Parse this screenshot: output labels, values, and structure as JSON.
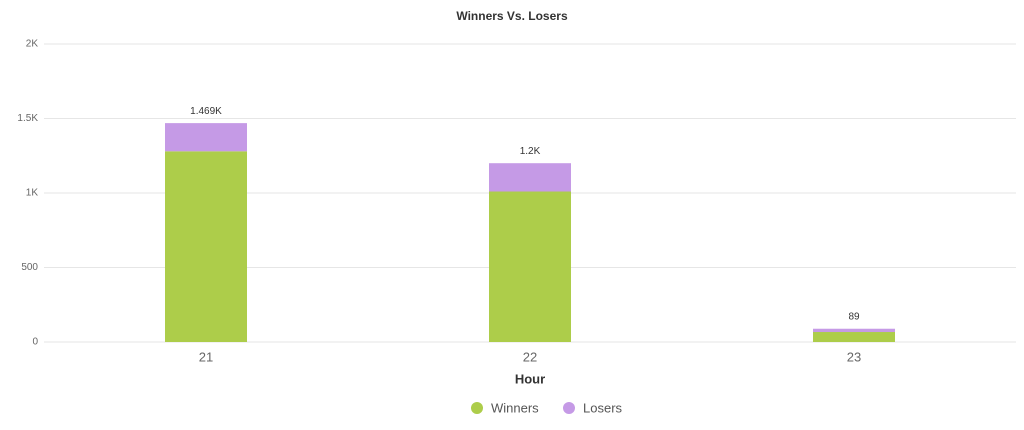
{
  "chart_data": {
    "type": "stacked_bar",
    "title": "Winners Vs. Losers",
    "x_label": "Hour",
    "categories": [
      "21",
      "22",
      "23"
    ],
    "series": [
      {
        "name": "Winners",
        "color": "#adcd4a",
        "values": [
          1280,
          1010,
          67
        ]
      },
      {
        "name": "Losers",
        "color": "#c59ae6",
        "values": [
          189,
          190,
          22
        ]
      }
    ],
    "totals": [
      1469,
      1200,
      89
    ],
    "total_labels": [
      "1.469K",
      "1.2K",
      "89"
    ],
    "ylim": [
      0,
      2000
    ],
    "yticks": [
      0,
      500,
      {
        "value": 1000,
        "label": "1K"
      },
      {
        "value": 1500,
        "label": "1.5K"
      },
      {
        "value": 2000,
        "label": "2K"
      }
    ],
    "grid": true,
    "legend": "bottom"
  }
}
